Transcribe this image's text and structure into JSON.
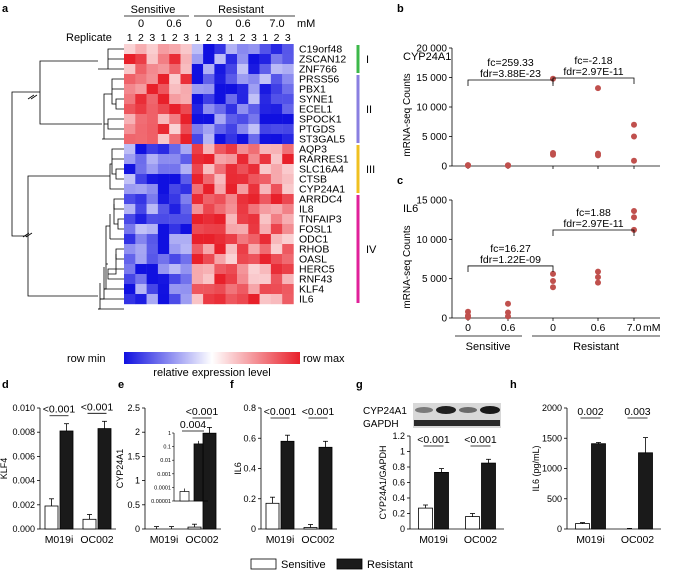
{
  "panel_labels": [
    "a",
    "b",
    "c",
    "d",
    "e",
    "f",
    "g",
    "h"
  ],
  "heatmap": {
    "group_sensitive": "Sensitive",
    "group_resistant": "Resistant",
    "conc_sensitive": [
      "0",
      "0.6"
    ],
    "conc_resistant": [
      "0",
      "0.6",
      "7.0"
    ],
    "unit": "mM",
    "replicate_label": "Replicate",
    "replicates": [
      "1",
      "2",
      "3",
      "1",
      "2",
      "3",
      "1",
      "2",
      "3",
      "1",
      "2",
      "3",
      "1",
      "2",
      "3"
    ],
    "genes": [
      "C19orf48",
      "ZSCAN12",
      "ZNF766",
      "PRSS56",
      "PBX1",
      "SYNE1",
      "ECEL1",
      "SPOCK1",
      "PTGDS",
      "ST3GAL5",
      "AQP3",
      "RARRES1",
      "SLC16A4",
      "CTSB",
      "CYP24A1",
      "ARRDC4",
      "IL8",
      "TNFAIP3",
      "FOSL1",
      "ODC1",
      "RHOB",
      "OASL",
      "HERC5",
      "RNF43",
      "KLF4",
      "IL6"
    ],
    "clusters": [
      {
        "label": "I",
        "start": 0,
        "end": 2,
        "color": "#3cb84a"
      },
      {
        "label": "II",
        "start": 3,
        "end": 9,
        "color": "#8a7fe0"
      },
      {
        "label": "III",
        "start": 10,
        "end": 14,
        "color": "#f0c020"
      },
      {
        "label": "IV",
        "start": 15,
        "end": 25,
        "color": "#e0209a"
      }
    ],
    "legend_min": "row min",
    "legend_max": "row max",
    "legend_caption": "relative expression level",
    "color_low": "#1010e0",
    "color_mid": "#ffffff",
    "color_high": "#e8202a"
  },
  "scatter_charts": {
    "x_ticks": [
      "0",
      "0.6",
      "0",
      "0.6",
      "7.0"
    ],
    "x_unit": "mM",
    "group_sensitive": "Sensitive",
    "group_resistant": "Resistant",
    "ylabel": "mRNA-seq Counts",
    "point_color": "#c0504d"
  },
  "bar_charts": {
    "categories": [
      "M019i",
      "OC002"
    ],
    "legend_sensitive": "Sensitive",
    "legend_resistant": "Resistant",
    "color_sensitive": "#ffffff",
    "color_resistant": "#1a1a1a"
  },
  "chart_data": [
    {
      "id": "b",
      "type": "scatter",
      "title": "CYP24A1",
      "ylabel": "mRNA-seq Counts",
      "ylim": [
        0,
        20000
      ],
      "yticks": [
        "0",
        "5 000",
        "10 000",
        "15 000",
        "20 000"
      ],
      "ytick_values": [
        0,
        5000,
        10000,
        15000,
        20000
      ],
      "categories": [
        "0",
        "0.6",
        "0",
        "0.6",
        "7.0"
      ],
      "points": [
        [
          0,
          80
        ],
        [
          0,
          120
        ],
        [
          0,
          150
        ],
        [
          1,
          60
        ],
        [
          1,
          100
        ],
        [
          1,
          140
        ],
        [
          2,
          14800
        ],
        [
          2,
          2200
        ],
        [
          2,
          1900
        ],
        [
          3,
          13200
        ],
        [
          3,
          2100
        ],
        [
          3,
          1800
        ],
        [
          4,
          7000
        ],
        [
          4,
          5000
        ],
        [
          4,
          900
        ]
      ],
      "annotations": [
        {
          "text1": "fc=259.33",
          "text2": "fdr=3.88E-23",
          "from": 0,
          "to": 2
        },
        {
          "text1": "fc=-2.18",
          "text2": "fdr=2.97E-11",
          "from": 2,
          "to": 4
        }
      ]
    },
    {
      "id": "c",
      "type": "scatter",
      "title": "IL6",
      "ylabel": "mRNA-seq Counts",
      "ylim": [
        0,
        15000
      ],
      "yticks": [
        "0",
        "5 000",
        "10 000",
        "15 000"
      ],
      "ytick_values": [
        0,
        5000,
        10000,
        15000
      ],
      "categories": [
        "0",
        "0.6",
        "0",
        "0.6",
        "7.0"
      ],
      "points": [
        [
          0,
          800
        ],
        [
          0,
          300
        ],
        [
          0,
          100
        ],
        [
          1,
          1800
        ],
        [
          1,
          700
        ],
        [
          1,
          200
        ],
        [
          2,
          5600
        ],
        [
          2,
          4700
        ],
        [
          2,
          3900
        ],
        [
          3,
          5900
        ],
        [
          3,
          5200
        ],
        [
          3,
          4500
        ],
        [
          4,
          13600
        ],
        [
          4,
          12800
        ],
        [
          4,
          11200
        ]
      ],
      "annotations": [
        {
          "text1": "fc=16.27",
          "text2": "fdr=1.22E-09",
          "from": 0,
          "to": 2
        },
        {
          "text1": "fc=1.88",
          "text2": "fdr=2.97E-11",
          "from": 2,
          "to": 4
        }
      ]
    },
    {
      "id": "d",
      "type": "bar",
      "ylabel": "KLF4",
      "ylim": [
        0,
        0.01
      ],
      "yticks": [
        "0.000",
        "0.002",
        "0.004",
        "0.006",
        "0.008",
        "0.010"
      ],
      "ytick_values": [
        0,
        0.002,
        0.004,
        0.006,
        0.008,
        0.01
      ],
      "categories": [
        "M019i",
        "OC002"
      ],
      "series": [
        {
          "name": "Sensitive",
          "values": [
            0.0019,
            0.0008
          ],
          "errors": [
            0.0006,
            0.0004
          ]
        },
        {
          "name": "Resistant",
          "values": [
            0.0081,
            0.0083
          ],
          "errors": [
            0.0006,
            0.0006
          ]
        }
      ],
      "pvalues": [
        "<0.001",
        "<0.001"
      ]
    },
    {
      "id": "e",
      "type": "bar",
      "ylabel": "CYP24A1",
      "ylim": [
        0,
        2.5
      ],
      "yticks": [
        "0",
        "0.5",
        "1",
        "1.5",
        "2",
        "2.5"
      ],
      "ytick_values": [
        0,
        0.5,
        1,
        1.5,
        2,
        2.5
      ],
      "categories": [
        "M019i",
        "OC002"
      ],
      "series": [
        {
          "name": "Sensitive",
          "values": [
            0.0,
            0.04
          ],
          "errors": [
            0.05,
            0.06
          ]
        },
        {
          "name": "Resistant",
          "values": [
            0.0,
            1.98
          ],
          "errors": [
            0.05,
            0.12
          ]
        }
      ],
      "pvalues": [
        "",
        "<0.001"
      ],
      "inset": {
        "yticks": [
          "0.00001",
          "0.0001",
          "0.001",
          "0.01",
          "0.1",
          "1"
        ],
        "log_values": [
          -5,
          -4,
          -3,
          -2,
          -1,
          0
        ],
        "series": [
          {
            "name": "Sensitive",
            "log_value": -4.3
          },
          {
            "name": "Resistant",
            "log_value": -0.8
          }
        ],
        "pvalue": "0.004"
      }
    },
    {
      "id": "f",
      "type": "bar",
      "ylabel": "IL6",
      "ylim": [
        0,
        0.8
      ],
      "yticks": [
        "0",
        "0.2",
        "0.4",
        "0.6",
        "0.8"
      ],
      "ytick_values": [
        0,
        0.2,
        0.4,
        0.6,
        0.8
      ],
      "categories": [
        "M019i",
        "OC002"
      ],
      "series": [
        {
          "name": "Sensitive",
          "values": [
            0.17,
            0.01
          ],
          "errors": [
            0.04,
            0.02
          ]
        },
        {
          "name": "Resistant",
          "values": [
            0.58,
            0.54
          ],
          "errors": [
            0.04,
            0.04
          ]
        }
      ],
      "pvalues": [
        "<0.001",
        "<0.001"
      ]
    },
    {
      "id": "g",
      "type": "bar",
      "ylabel": "CYP24A1/GAPDH",
      "blot_labels": [
        "CYP24A1",
        "GAPDH"
      ],
      "ylim": [
        0,
        1.2
      ],
      "yticks": [
        "0",
        "0.2",
        "0.4",
        "0.6",
        "0.8",
        "1",
        "1.2"
      ],
      "ytick_values": [
        0,
        0.2,
        0.4,
        0.6,
        0.8,
        1.0,
        1.2
      ],
      "categories": [
        "M019i",
        "OC002"
      ],
      "series": [
        {
          "name": "Sensitive",
          "values": [
            0.27,
            0.16
          ],
          "errors": [
            0.04,
            0.04
          ]
        },
        {
          "name": "Resistant",
          "values": [
            0.73,
            0.85
          ],
          "errors": [
            0.05,
            0.05
          ]
        }
      ],
      "pvalues": [
        "<0.001",
        "<0.001"
      ]
    },
    {
      "id": "h",
      "type": "bar",
      "ylabel": "IL6 (pg/mL)",
      "ylim": [
        0,
        2000
      ],
      "yticks": [
        "0",
        "500",
        "1000",
        "1500",
        "2000"
      ],
      "ytick_values": [
        0,
        500,
        1000,
        1500,
        2000
      ],
      "categories": [
        "M019i",
        "OC002"
      ],
      "series": [
        {
          "name": "Sensitive",
          "values": [
            90,
            0
          ],
          "errors": [
            15,
            10
          ]
        },
        {
          "name": "Resistant",
          "values": [
            1410,
            1260
          ],
          "errors": [
            20,
            250
          ]
        }
      ],
      "pvalues": [
        "0.002",
        "0.003"
      ]
    }
  ]
}
